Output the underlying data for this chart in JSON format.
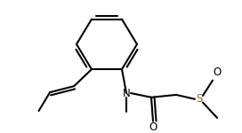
{
  "bg_color": "#ffffff",
  "line_color": "#000000",
  "s_color": "#8B6914",
  "o_color": "#000000",
  "n_color": "#000000",
  "lw": 1.5,
  "doff": 0.013,
  "figsize": [
    2.72,
    1.5
  ],
  "dpi": 100,
  "xlim": [
    0,
    272
  ],
  "ylim": [
    0,
    150
  ]
}
